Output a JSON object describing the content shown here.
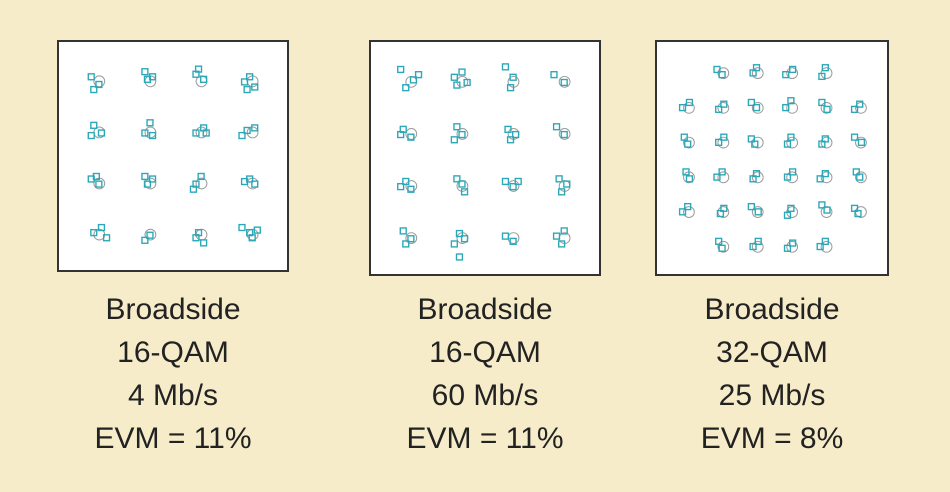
{
  "colors": {
    "background": "#f6ecc9",
    "received_symbol": "#2aa8b8",
    "ideal_symbol": "#9a9a9a",
    "text": "#222222"
  },
  "chart_data": [
    {
      "type": "scatter",
      "subtype": "constellation",
      "modulation": "16-QAM",
      "caption": {
        "mode": "Broadside",
        "modulation": "16-QAM",
        "rate": "4 Mb/s",
        "evm": "EVM = 11%"
      },
      "axis_range": [
        -4,
        4
      ],
      "ideal_points": [
        [
          -3,
          3
        ],
        [
          -1,
          3
        ],
        [
          1,
          3
        ],
        [
          3,
          3
        ],
        [
          -3,
          1
        ],
        [
          -1,
          1
        ],
        [
          1,
          1
        ],
        [
          3,
          1
        ],
        [
          -3,
          -1
        ],
        [
          -1,
          -1
        ],
        [
          1,
          -1
        ],
        [
          3,
          -1
        ],
        [
          -3,
          -3
        ],
        [
          -1,
          -3
        ],
        [
          1,
          -3
        ],
        [
          3,
          -3
        ]
      ],
      "received_points": [
        [
          -3.2,
          3.1
        ],
        [
          -2.9,
          2.8
        ],
        [
          -3.1,
          2.6
        ],
        [
          -1.1,
          3.3
        ],
        [
          -0.8,
          3.1
        ],
        [
          -1.0,
          3.0
        ],
        [
          0.9,
          3.2
        ],
        [
          1.2,
          3.0
        ],
        [
          1.0,
          3.4
        ],
        [
          3.0,
          3.1
        ],
        [
          2.8,
          2.9
        ],
        [
          3.2,
          2.7
        ],
        [
          2.9,
          2.6
        ],
        [
          -3.1,
          1.2
        ],
        [
          -2.8,
          0.9
        ],
        [
          -3.2,
          0.8
        ],
        [
          -0.9,
          1.3
        ],
        [
          -1.1,
          0.9
        ],
        [
          -0.8,
          0.8
        ],
        [
          0.9,
          0.9
        ],
        [
          1.2,
          1.1
        ],
        [
          1.3,
          0.9
        ],
        [
          2.9,
          1.0
        ],
        [
          3.2,
          1.1
        ],
        [
          2.7,
          0.8
        ],
        [
          -3.2,
          -0.9
        ],
        [
          -2.9,
          -1.1
        ],
        [
          -3.0,
          -0.8
        ],
        [
          -1.0,
          -1.1
        ],
        [
          -0.8,
          -0.9
        ],
        [
          -1.1,
          -0.8
        ],
        [
          0.9,
          -1.1
        ],
        [
          1.1,
          -0.8
        ],
        [
          0.8,
          -1.3
        ],
        [
          3.0,
          -0.9
        ],
        [
          3.2,
          -1.1
        ],
        [
          2.8,
          -1.0
        ],
        [
          -2.8,
          -2.8
        ],
        [
          -3.1,
          -3.0
        ],
        [
          -2.6,
          -3.2
        ],
        [
          -1.1,
          -3.3
        ],
        [
          -0.9,
          -3.1
        ],
        [
          1.0,
          -3.0
        ],
        [
          1.2,
          -3.4
        ],
        [
          0.9,
          -3.2
        ],
        [
          2.7,
          -2.8
        ],
        [
          3.0,
          -3.0
        ],
        [
          3.3,
          -2.9
        ],
        [
          3.1,
          -3.2
        ]
      ]
    },
    {
      "type": "scatter",
      "subtype": "constellation",
      "modulation": "16-QAM",
      "caption": {
        "mode": "Broadside",
        "modulation": "16-QAM",
        "rate": "60 Mb/s",
        "evm": "EVM = 11%"
      },
      "axis_range": [
        -4,
        4
      ],
      "ideal_points": [
        [
          -3,
          3
        ],
        [
          -1,
          3
        ],
        [
          1,
          3
        ],
        [
          3,
          3
        ],
        [
          -3,
          1
        ],
        [
          -1,
          1
        ],
        [
          1,
          1
        ],
        [
          3,
          1
        ],
        [
          -3,
          -1
        ],
        [
          -1,
          -1
        ],
        [
          1,
          -1
        ],
        [
          3,
          -1
        ],
        [
          -3,
          -3
        ],
        [
          -1,
          -3
        ],
        [
          1,
          -3
        ],
        [
          3,
          -3
        ]
      ],
      "received_points": [
        [
          -3.3,
          3.4
        ],
        [
          -2.8,
          3.0
        ],
        [
          -3.1,
          2.7
        ],
        [
          -2.6,
          3.2
        ],
        [
          -1.2,
          3.1
        ],
        [
          -0.9,
          3.3
        ],
        [
          -0.7,
          2.9
        ],
        [
          -1.1,
          2.8
        ],
        [
          0.8,
          3.5
        ],
        [
          1.1,
          3.1
        ],
        [
          1.0,
          2.7
        ],
        [
          2.7,
          3.2
        ],
        [
          3.1,
          2.9
        ],
        [
          -3.2,
          1.1
        ],
        [
          -2.9,
          0.8
        ],
        [
          -3.3,
          0.9
        ],
        [
          -1.1,
          1.2
        ],
        [
          -0.9,
          0.9
        ],
        [
          -1.2,
          0.7
        ],
        [
          0.9,
          1.1
        ],
        [
          1.2,
          0.9
        ],
        [
          1.0,
          0.7
        ],
        [
          2.8,
          1.2
        ],
        [
          3.1,
          0.9
        ],
        [
          -3.1,
          -0.9
        ],
        [
          -2.9,
          -1.2
        ],
        [
          -3.3,
          -1.1
        ],
        [
          -0.9,
          -1.0
        ],
        [
          -1.1,
          -0.8
        ],
        [
          -0.8,
          -1.3
        ],
        [
          0.8,
          -0.9
        ],
        [
          1.1,
          -1.1
        ],
        [
          1.3,
          -0.9
        ],
        [
          2.9,
          -0.8
        ],
        [
          3.2,
          -1.0
        ],
        [
          3.0,
          -1.3
        ],
        [
          -3.2,
          -2.8
        ],
        [
          -2.9,
          -3.1
        ],
        [
          -3.1,
          -3.3
        ],
        [
          -1.0,
          -2.9
        ],
        [
          -0.8,
          -3.1
        ],
        [
          -1.2,
          -3.3
        ],
        [
          -1.0,
          -3.8
        ],
        [
          0.8,
          -3.0
        ],
        [
          1.1,
          -3.2
        ],
        [
          2.8,
          -3.0
        ],
        [
          3.1,
          -2.8
        ],
        [
          3.0,
          -3.3
        ]
      ]
    },
    {
      "type": "scatter",
      "subtype": "constellation",
      "modulation": "32-QAM",
      "caption": {
        "mode": "Broadside",
        "modulation": "32-QAM",
        "rate": "25 Mb/s",
        "evm": "EVM = 8%"
      },
      "axis_range": [
        -6,
        6
      ],
      "ideal_points": [
        [
          -3,
          5
        ],
        [
          -1,
          5
        ],
        [
          1,
          5
        ],
        [
          3,
          5
        ],
        [
          -5,
          3
        ],
        [
          -3,
          3
        ],
        [
          -1,
          3
        ],
        [
          1,
          3
        ],
        [
          3,
          3
        ],
        [
          5,
          3
        ],
        [
          -5,
          1
        ],
        [
          -3,
          1
        ],
        [
          -1,
          1
        ],
        [
          1,
          1
        ],
        [
          3,
          1
        ],
        [
          5,
          1
        ],
        [
          -5,
          -1
        ],
        [
          -3,
          -1
        ],
        [
          -1,
          -1
        ],
        [
          1,
          -1
        ],
        [
          3,
          -1
        ],
        [
          5,
          -1
        ],
        [
          -5,
          -3
        ],
        [
          -3,
          -3
        ],
        [
          -1,
          -3
        ],
        [
          1,
          -3
        ],
        [
          3,
          -3
        ],
        [
          5,
          -3
        ],
        [
          -3,
          -5
        ],
        [
          -1,
          -5
        ],
        [
          1,
          -5
        ],
        [
          3,
          -5
        ]
      ],
      "received_points": [
        [
          -3.2,
          5.1
        ],
        [
          -2.9,
          4.8
        ],
        [
          -0.9,
          5.2
        ],
        [
          -1.1,
          4.9
        ],
        [
          0.8,
          4.8
        ],
        [
          1.2,
          5.1
        ],
        [
          2.9,
          4.7
        ],
        [
          3.1,
          5.2
        ],
        [
          -5.2,
          2.9
        ],
        [
          -4.8,
          3.2
        ],
        [
          -3.1,
          2.8
        ],
        [
          -2.8,
          3.1
        ],
        [
          -1.2,
          3.2
        ],
        [
          -0.9,
          2.9
        ],
        [
          1.1,
          3.3
        ],
        [
          0.8,
          2.9
        ],
        [
          3.2,
          2.8
        ],
        [
          2.9,
          3.2
        ],
        [
          5.1,
          3.1
        ],
        [
          4.8,
          2.8
        ],
        [
          -5.1,
          1.2
        ],
        [
          -4.9,
          0.8
        ],
        [
          -3.1,
          0.9
        ],
        [
          -2.8,
          1.2
        ],
        [
          -1.0,
          0.8
        ],
        [
          -1.2,
          1.1
        ],
        [
          1.1,
          1.2
        ],
        [
          0.9,
          0.8
        ],
        [
          3.1,
          1.1
        ],
        [
          2.9,
          0.8
        ],
        [
          5.2,
          0.9
        ],
        [
          4.8,
          1.2
        ],
        [
          -5.0,
          -0.8
        ],
        [
          -4.8,
          -1.2
        ],
        [
          -3.2,
          -1.1
        ],
        [
          -2.9,
          -0.8
        ],
        [
          -1.1,
          -1.2
        ],
        [
          -0.9,
          -0.9
        ],
        [
          0.9,
          -1.1
        ],
        [
          1.2,
          -0.8
        ],
        [
          2.8,
          -1.2
        ],
        [
          3.1,
          -0.9
        ],
        [
          5.1,
          -1.1
        ],
        [
          4.9,
          -0.8
        ],
        [
          -5.2,
          -3.1
        ],
        [
          -4.9,
          -2.8
        ],
        [
          -3.0,
          -3.2
        ],
        [
          -2.8,
          -2.9
        ],
        [
          -1.2,
          -2.8
        ],
        [
          -0.8,
          -3.1
        ],
        [
          1.1,
          -2.9
        ],
        [
          0.9,
          -3.3
        ],
        [
          3.2,
          -3.0
        ],
        [
          2.9,
          -2.7
        ],
        [
          5.0,
          -3.2
        ],
        [
          4.8,
          -2.9
        ],
        [
          -3.1,
          -4.8
        ],
        [
          -2.9,
          -5.2
        ],
        [
          -1.1,
          -5.1
        ],
        [
          -0.8,
          -4.8
        ],
        [
          0.9,
          -5.2
        ],
        [
          1.2,
          -4.9
        ],
        [
          2.8,
          -5.1
        ],
        [
          3.1,
          -4.8
        ]
      ]
    }
  ]
}
